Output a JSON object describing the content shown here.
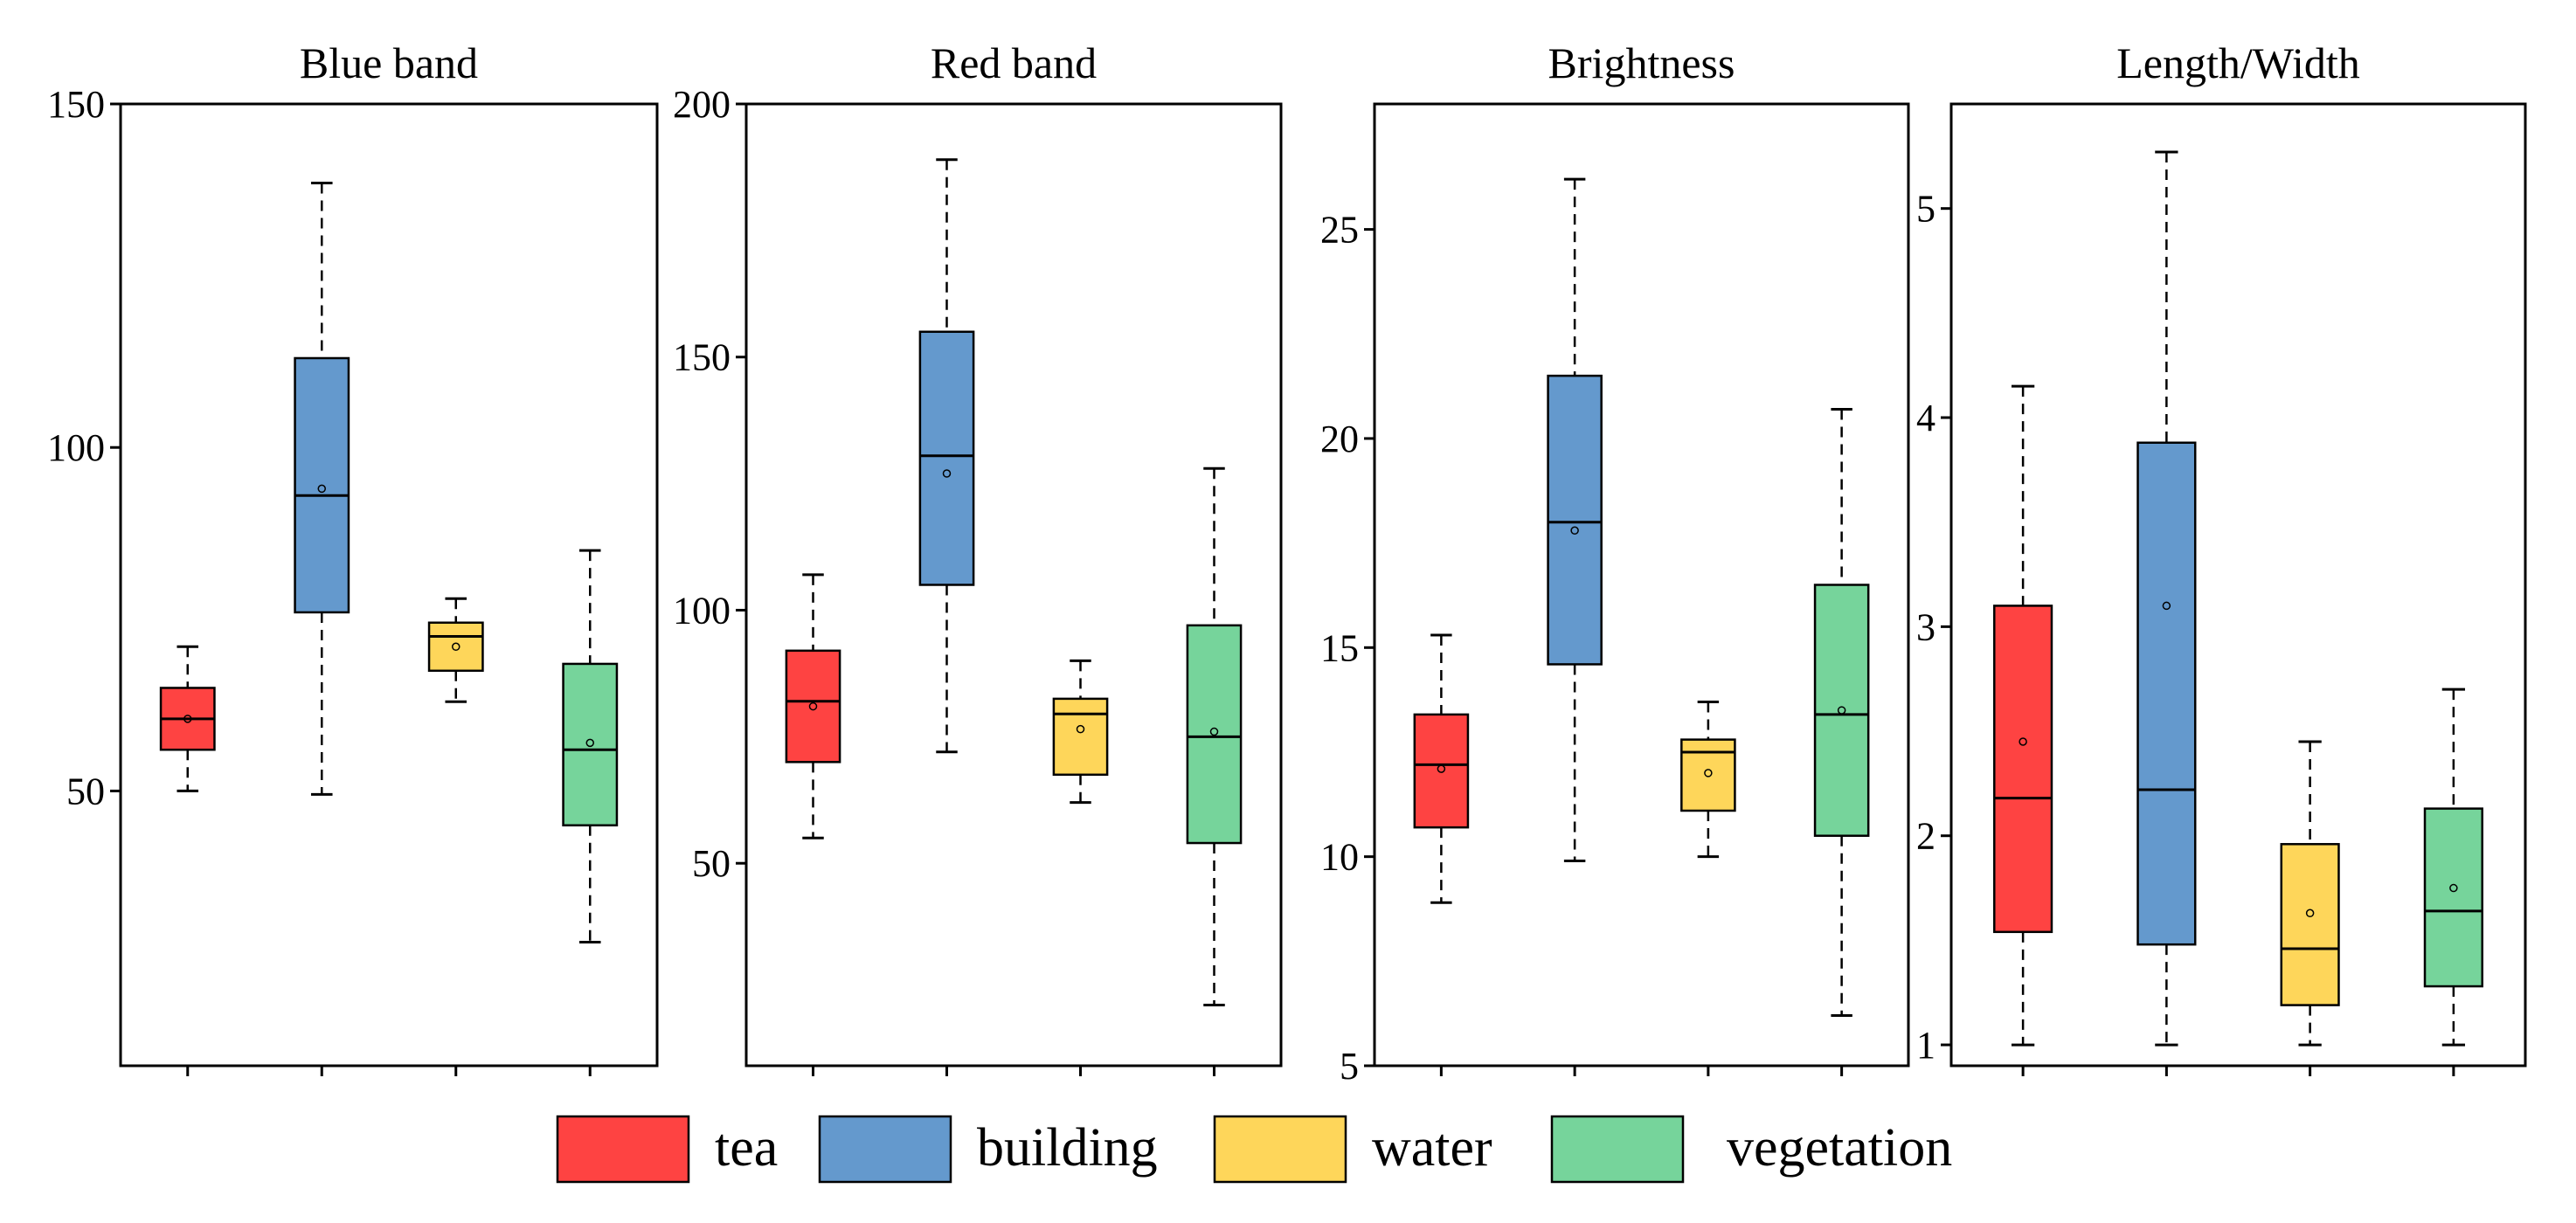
{
  "chart_data": [
    {
      "type": "box",
      "title": "Blue  band",
      "categories": [
        "tea",
        "building",
        "water",
        "vegetation"
      ],
      "ylim": [
        10,
        150
      ],
      "yticks": [
        50,
        100,
        150
      ],
      "boxes": [
        {
          "category": "tea",
          "min": 50,
          "q1": 56,
          "median": 60.5,
          "q3": 65,
          "max": 71,
          "mean": 60.5
        },
        {
          "category": "building",
          "min": 49.5,
          "q1": 76,
          "median": 93,
          "q3": 113,
          "max": 138.5,
          "mean": 94
        },
        {
          "category": "water",
          "min": 63,
          "q1": 67.5,
          "median": 72.5,
          "q3": 74.5,
          "max": 78,
          "mean": 71
        },
        {
          "category": "vegetation",
          "min": 28,
          "q1": 45,
          "median": 56,
          "q3": 68.5,
          "max": 85,
          "mean": 57
        }
      ]
    },
    {
      "type": "box",
      "title": "Red band",
      "categories": [
        "tea",
        "building",
        "water",
        "vegetation"
      ],
      "ylim": [
        10,
        200
      ],
      "yticks": [
        50,
        100,
        150,
        200
      ],
      "boxes": [
        {
          "category": "tea",
          "min": 55,
          "q1": 70,
          "median": 82,
          "q3": 92,
          "max": 107,
          "mean": 81
        },
        {
          "category": "building",
          "min": 72,
          "q1": 105,
          "median": 130.5,
          "q3": 155,
          "max": 189,
          "mean": 127
        },
        {
          "category": "water",
          "min": 62,
          "q1": 67.5,
          "median": 79.5,
          "q3": 82.5,
          "max": 90,
          "mean": 76.5
        },
        {
          "category": "vegetation",
          "min": 22,
          "q1": 54,
          "median": 75,
          "q3": 97,
          "max": 128,
          "mean": 76
        }
      ]
    },
    {
      "type": "box",
      "title": "Brightness",
      "categories": [
        "tea",
        "building",
        "water",
        "vegetation"
      ],
      "ylim": [
        5,
        28
      ],
      "yticks": [
        5,
        10,
        15,
        20,
        25
      ],
      "boxes": [
        {
          "category": "tea",
          "min": 8.9,
          "q1": 10.7,
          "median": 12.2,
          "q3": 13.4,
          "max": 15.3,
          "mean": 12.1
        },
        {
          "category": "building",
          "min": 9.9,
          "q1": 14.6,
          "median": 18,
          "q3": 21.5,
          "max": 26.2,
          "mean": 17.8
        },
        {
          "category": "water",
          "min": 10,
          "q1": 11.1,
          "median": 12.5,
          "q3": 12.8,
          "max": 13.7,
          "mean": 12
        },
        {
          "category": "vegetation",
          "min": 6.2,
          "q1": 10.5,
          "median": 13.4,
          "q3": 16.5,
          "max": 20.7,
          "mean": 13.5
        }
      ]
    },
    {
      "type": "box",
      "title": "Length/Width",
      "categories": [
        "tea",
        "building",
        "water",
        "vegetation"
      ],
      "ylim": [
        0.9,
        5.5
      ],
      "yticks": [
        1,
        2,
        3,
        4,
        5
      ],
      "boxes": [
        {
          "category": "tea",
          "min": 1,
          "q1": 1.54,
          "median": 2.18,
          "q3": 3.1,
          "max": 4.15,
          "mean": 2.45
        },
        {
          "category": "building",
          "min": 1,
          "q1": 1.48,
          "median": 2.22,
          "q3": 3.88,
          "max": 5.27,
          "mean": 3.1
        },
        {
          "category": "water",
          "min": 1,
          "q1": 1.19,
          "median": 1.46,
          "q3": 1.96,
          "max": 2.45,
          "mean": 1.63
        },
        {
          "category": "vegetation",
          "min": 1,
          "q1": 1.28,
          "median": 1.64,
          "q3": 2.13,
          "max": 2.7,
          "mean": 1.75
        }
      ]
    }
  ],
  "legend": {
    "position": "bottom",
    "items": [
      {
        "label": "tea",
        "color": "#fe4342"
      },
      {
        "label": "building",
        "color": "#6499cd"
      },
      {
        "label": "water",
        "color": "#fed65a"
      },
      {
        "label": "vegetation",
        "color": "#76d49b"
      }
    ]
  }
}
